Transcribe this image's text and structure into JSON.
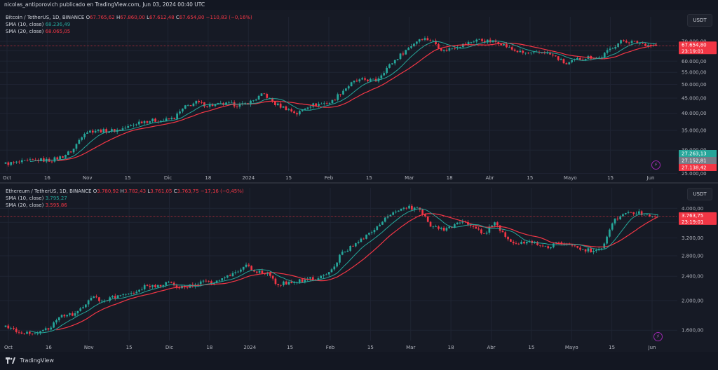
{
  "header": {
    "publisher": "nicolas_antiporovich publicado en TradingView.com, Jun 03, 2024 00:40 UTC"
  },
  "footer": {
    "brand": "TradingView"
  },
  "colors": {
    "up": "#26a69a",
    "down": "#f23645",
    "sma10": "#26a69a",
    "sma20": "#f23645",
    "bg": "#161a25",
    "grid": "#1f2433"
  },
  "panes": [
    {
      "id": "btc",
      "symbol": "Bitcoin / TetherUS, 1D, BINANCE",
      "ohlc": {
        "o_label": "O",
        "o": "67.765,62",
        "h_label": "H",
        "h": "67.860,00",
        "l_label": "L",
        "l": "67.612,48",
        "c_label": "C",
        "c": "67.654,80",
        "chg": "−110,83 (−0,16%)"
      },
      "sma10": {
        "label": "SMA (10, close)",
        "value": "68.236,49"
      },
      "sma20": {
        "label": "SMA (20, close)",
        "value": "68.065,05"
      },
      "currency": "USDT",
      "last_price": "67.654,80",
      "countdown": "23:19:01",
      "extra_tags": [
        {
          "text": "27.263,13",
          "color": "#26a69a"
        },
        {
          "text": "27.152,81",
          "color": "#787b86"
        },
        {
          "text": "27.138,42",
          "color": "#f23645"
        }
      ]
    },
    {
      "id": "eth",
      "symbol": "Ethereum / TetherUS, 1D, BINANCE",
      "ohlc": {
        "o_label": "O",
        "o": "3.780,92",
        "h_label": "H",
        "h": "3.782,43",
        "l_label": "L",
        "l": "3.761,05",
        "c_label": "C",
        "c": "3.763,75",
        "chg": "−17,16 (−0,45%)"
      },
      "sma10": {
        "label": "SMA (10, close)",
        "value": "3.795,27"
      },
      "sma20": {
        "label": "SMA (20, close)",
        "value": "3.595,86"
      },
      "currency": "USDT",
      "last_price": "3.763,75",
      "countdown": "23:19:01",
      "extra_tags": []
    }
  ],
  "chart_data": [
    {
      "type": "candlestick",
      "title": "Bitcoin / TetherUS, 1D, BINANCE",
      "x_tick_labels": [
        "Oct",
        "16",
        "Nov",
        "15",
        "Dic",
        "18",
        "2024",
        "15",
        "Feb",
        "15",
        "Mar",
        "18",
        "Abr",
        "15",
        "Mayo",
        "15",
        "Jun"
      ],
      "y_tick_labels": [
        "70.000,00",
        "65.000,00",
        "60.000,00",
        "55.000,00",
        "50.000,00",
        "45.000,00",
        "40.000,00",
        "35.000,00",
        "30.000,00",
        "25.000,00"
      ],
      "y_ticks": [
        70000,
        65000,
        60000,
        55000,
        50000,
        45000,
        40000,
        35000,
        30000,
        25000
      ],
      "scale": "log",
      "ylim": [
        25500,
        76000
      ],
      "last_close": 67654.8,
      "approx_closes": [
        27000,
        27200,
        27500,
        27800,
        27700,
        28500,
        30000,
        34500,
        35000,
        34800,
        35100,
        36000,
        37500,
        37800,
        37700,
        38500,
        42000,
        43500,
        42500,
        42800,
        43000,
        42500,
        44000,
        46500,
        43000,
        41500,
        39800,
        42500,
        43000,
        43500,
        47500,
        51000,
        52000,
        51500,
        57000,
        62000,
        67000,
        72000,
        70500,
        65000,
        67000,
        68500,
        71000,
        70000,
        69500,
        66000,
        64000,
        63500,
        64500,
        62000,
        58500,
        61000,
        62000,
        61500,
        66500,
        70500,
        69500,
        68500,
        67654.8
      ]
    },
    {
      "type": "candlestick",
      "title": "Ethereum / TetherUS, 1D, BINANCE",
      "x_tick_labels": [
        "Oct",
        "16",
        "Nov",
        "15",
        "Dic",
        "18",
        "2024",
        "15",
        "Feb",
        "15",
        "Mar",
        "18",
        "Abr",
        "15",
        "Mayo",
        "15",
        "Jun"
      ],
      "y_tick_labels": [
        "4.000,00",
        "3.600,00",
        "3.200,00",
        "2.800,00",
        "2.400,00",
        "2.000,00",
        "1.600,00"
      ],
      "y_ticks": [
        4000,
        3600,
        3200,
        2800,
        2400,
        2000,
        1600
      ],
      "scale": "log",
      "ylim": [
        1480,
        4200
      ],
      "last_close": 3763.75,
      "approx_closes": [
        1650,
        1600,
        1560,
        1580,
        1620,
        1800,
        1790,
        1880,
        2050,
        2000,
        2050,
        2080,
        2100,
        2250,
        2220,
        2280,
        2200,
        2230,
        2300,
        2280,
        2350,
        2450,
        2600,
        2500,
        2450,
        2250,
        2300,
        2320,
        2350,
        2380,
        2500,
        2900,
        3000,
        3200,
        3400,
        3700,
        3900,
        4050,
        3950,
        3550,
        3400,
        3500,
        3600,
        3450,
        3300,
        3600,
        3200,
        3050,
        3100,
        3050,
        3000,
        3100,
        3000,
        2950,
        2900,
        3000,
        3700,
        3800,
        3900,
        3800,
        3763.75
      ]
    }
  ]
}
